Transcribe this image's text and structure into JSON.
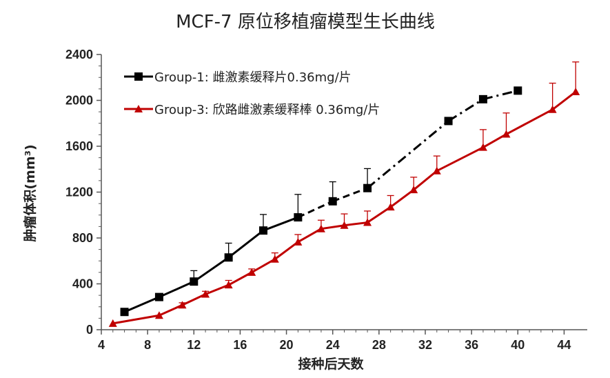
{
  "chart_data": {
    "type": "line",
    "title": "MCF-7 原位移植瘤模型生长曲线",
    "xlabel": "接种后天数",
    "ylabel": "肿瘤体积(mm³)",
    "xlim": [
      4,
      46
    ],
    "ylim": [
      0,
      2400
    ],
    "x_ticks": [
      4,
      8,
      12,
      16,
      20,
      24,
      28,
      32,
      36,
      40,
      44
    ],
    "y_ticks": [
      0,
      400,
      800,
      1200,
      1600,
      2000,
      2400
    ],
    "legend_position": "top-left",
    "grid": false,
    "series": [
      {
        "name": "Group-1: 雌激素缓释片0.36mg/片",
        "color": "#000000",
        "marker": "square",
        "x": [
          6,
          9,
          12,
          15,
          18,
          21,
          24,
          27,
          34,
          37,
          40
        ],
        "y": [
          155,
          285,
          420,
          630,
          865,
          980,
          1120,
          1235,
          1820,
          2010,
          2085
        ],
        "error_plus": [
          0,
          30,
          95,
          125,
          140,
          200,
          170,
          170,
          0,
          0,
          0
        ],
        "line_style_segments": [
          "solid",
          "solid",
          "solid",
          "solid",
          "solid",
          "dashed",
          "dashed",
          "dashdot",
          "dashdot",
          "dashdot"
        ]
      },
      {
        "name": "Group-3: 欣路雌激素缓释棒 0.36mg/片",
        "color": "#c00000",
        "marker": "triangle",
        "x": [
          5,
          9,
          11,
          13,
          15,
          17,
          19,
          21,
          23,
          25,
          27,
          29,
          31,
          33,
          37,
          39,
          43,
          45
        ],
        "y": [
          55,
          125,
          215,
          310,
          390,
          500,
          615,
          765,
          880,
          910,
          935,
          1070,
          1220,
          1385,
          1590,
          1705,
          1920,
          2075
        ],
        "error_plus": [
          0,
          0,
          20,
          25,
          40,
          30,
          55,
          65,
          75,
          100,
          100,
          100,
          110,
          130,
          155,
          185,
          230,
          260
        ]
      }
    ]
  }
}
